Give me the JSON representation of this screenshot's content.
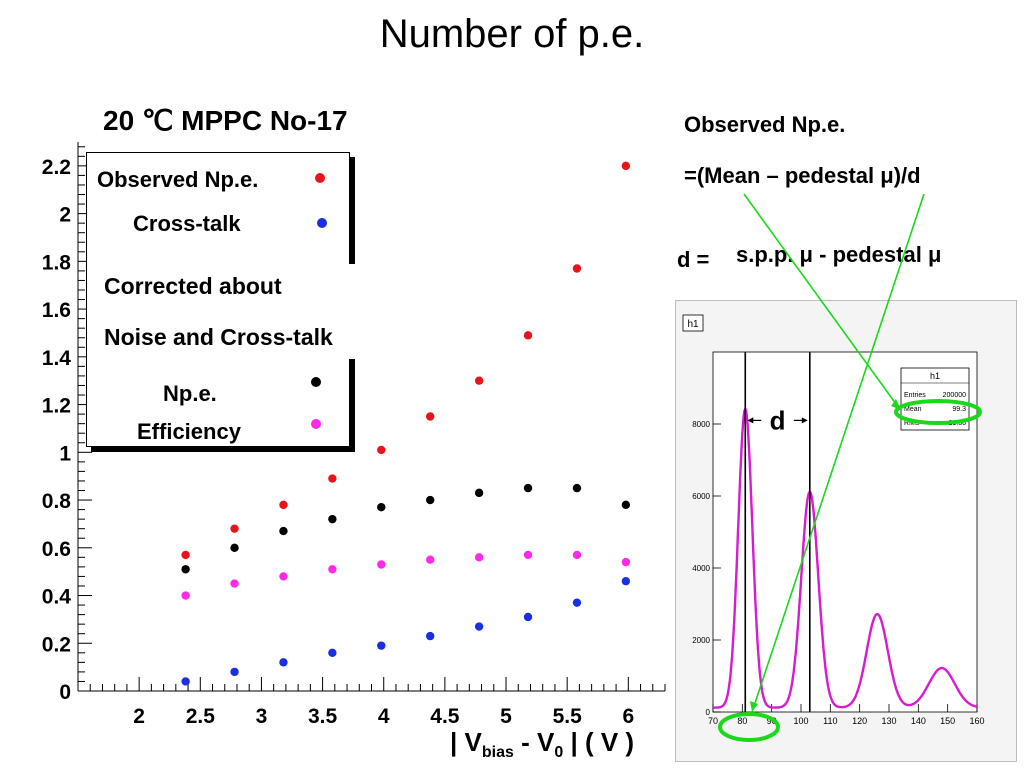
{
  "title": "Number of p.e.",
  "plot_title": "20 ℃  MPPC  No-17",
  "legend": {
    "observed": "Observed Np.e.",
    "crosstalk": "Cross-talk",
    "corrected_line1": "Corrected about",
    "corrected_line2": "Noise and Cross-talk",
    "npe": "Np.e.",
    "efficiency": "Efficiency"
  },
  "xaxis_title": {
    "pre": "| V",
    "sub1": "bias",
    "mid": " - V",
    "sub2": "0",
    "post": " | ( V )"
  },
  "notes": {
    "observed_line1": "Observed Np.e.",
    "observed_line2": "=(Mean – pedestal μ)/d",
    "d_eq": "d = ",
    "d_def": "s.p.p. μ - pedestal μ",
    "d_marker": "d"
  },
  "colors": {
    "observed": "#e8141b",
    "crosstalk": "#1a30e0",
    "npe": "#000000",
    "efficiency": "#ff2ae8",
    "hist": "#d81ad0",
    "annot": "#1ad81a"
  },
  "chart_data": [
    {
      "type": "scatter",
      "title": "20 ℃  MPPC  No-17",
      "xlabel": "| Vbias - V0 | ( V )",
      "ylabel": "",
      "xlim": [
        1.5,
        6.3
      ],
      "ylim": [
        0,
        2.3
      ],
      "xticks": [
        "2",
        "2.5",
        "3",
        "3.5",
        "4",
        "4.5",
        "5",
        "5.5",
        "6"
      ],
      "yticks": [
        "0",
        "0.2",
        "0.4",
        "0.6",
        "0.8",
        "1",
        "1.2",
        "1.4",
        "1.6",
        "1.8",
        "2",
        "2.2"
      ],
      "x": [
        2.38,
        2.78,
        3.18,
        3.58,
        3.98,
        4.38,
        4.78,
        5.18,
        5.58,
        5.98
      ],
      "series": [
        {
          "name": "Observed Np.e.",
          "color": "#e8141b",
          "values": [
            0.57,
            0.68,
            0.78,
            0.89,
            1.01,
            1.15,
            1.3,
            1.49,
            1.77,
            2.2
          ]
        },
        {
          "name": "Cross-talk",
          "color": "#1a30e0",
          "values": [
            0.04,
            0.08,
            0.12,
            0.16,
            0.19,
            0.23,
            0.27,
            0.31,
            0.37,
            0.46
          ]
        },
        {
          "name": "Np.e.",
          "color": "#000000",
          "values": [
            0.51,
            0.6,
            0.67,
            0.72,
            0.77,
            0.8,
            0.83,
            0.85,
            0.85,
            0.78
          ]
        },
        {
          "name": "Efficiency",
          "color": "#ff2ae8",
          "values": [
            0.4,
            0.45,
            0.48,
            0.51,
            0.53,
            0.55,
            0.56,
            0.57,
            0.57,
            0.54
          ]
        }
      ],
      "grid": false,
      "legend": "top-left"
    },
    {
      "type": "line",
      "title": "h1",
      "xlim": [
        70,
        160
      ],
      "ylim": [
        0,
        10000
      ],
      "xticks": [
        "70",
        "80",
        "90",
        "100",
        "110",
        "120",
        "130",
        "140",
        "150",
        "160"
      ],
      "yticks": [
        "0",
        "2000",
        "4000",
        "6000",
        "8000"
      ],
      "stats": {
        "name": "h1",
        "rows": [
          [
            "Entries",
            "200000"
          ],
          [
            "Mean",
            "99.3"
          ],
          [
            "RMS",
            "21.36"
          ]
        ]
      },
      "peaks": [
        {
          "x": 81,
          "y": 8300
        },
        {
          "x": 103,
          "y": 6000
        },
        {
          "x": 126,
          "y": 2600
        },
        {
          "x": 148,
          "y": 1100
        }
      ]
    }
  ]
}
